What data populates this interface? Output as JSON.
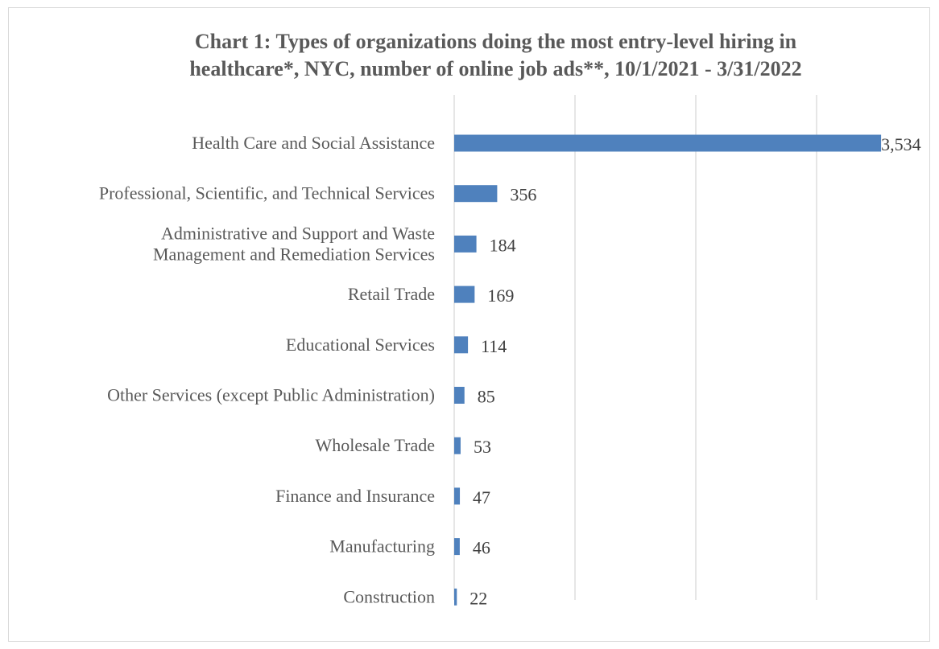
{
  "chart_data": {
    "type": "bar",
    "orientation": "horizontal",
    "title_lines": [
      "Chart 1: Types of organizations doing the most entry-level hiring in",
      "healthcare*, NYC, number of online job ads**, 10/1/2021 - 3/31/2022"
    ],
    "categories": [
      [
        "Health Care and Social Assistance"
      ],
      [
        "Professional, Scientific, and Technical Services"
      ],
      [
        "Administrative and Support and Waste",
        "Management and Remediation Services"
      ],
      [
        "Retail Trade"
      ],
      [
        "Educational Services"
      ],
      [
        "Other Services (except Public Administration)"
      ],
      [
        "Wholesale Trade"
      ],
      [
        "Finance and Insurance"
      ],
      [
        "Manufacturing"
      ],
      [
        "Construction"
      ]
    ],
    "values": [
      3534,
      356,
      184,
      169,
      114,
      85,
      53,
      47,
      46,
      22
    ],
    "value_labels": [
      "3,534",
      "356",
      "184",
      "169",
      "114",
      "85",
      "53",
      "47",
      "46",
      "22"
    ],
    "xlim": [
      0,
      4000
    ],
    "x_gridline_step": 1000,
    "grid": true,
    "legend": "none",
    "bar_color": "#4f81bd",
    "gridline_color": "#d9d9d9"
  }
}
